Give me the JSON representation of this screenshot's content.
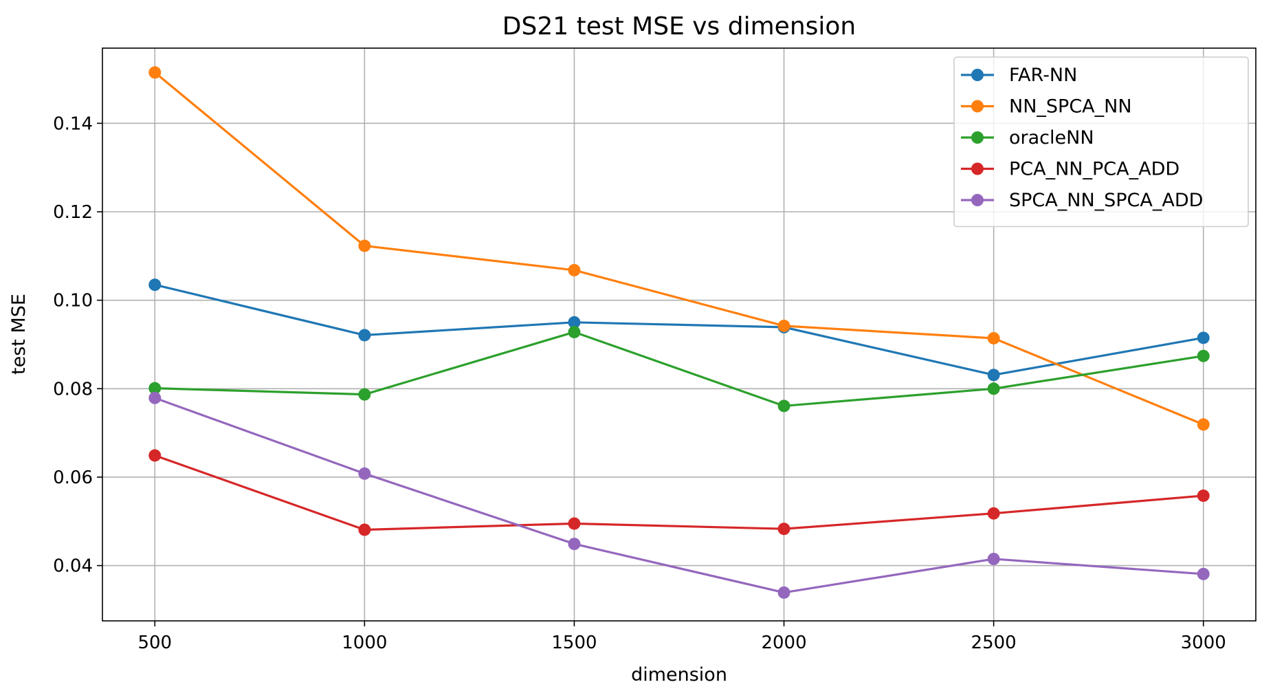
{
  "chart_data": {
    "type": "line",
    "title": "DS21 test MSE vs dimension",
    "xlabel": "dimension",
    "ylabel": "test MSE",
    "x": [
      500,
      1000,
      1500,
      2000,
      2500,
      3000
    ],
    "xlim": [
      375,
      3125
    ],
    "ylim": [
      0.0275,
      0.157
    ],
    "xticks": [
      500,
      1000,
      1500,
      2000,
      2500,
      3000
    ],
    "yticks": [
      0.04,
      0.06,
      0.08,
      0.1,
      0.12,
      0.14
    ],
    "ytick_labels": [
      "0.04",
      "0.06",
      "0.08",
      "0.10",
      "0.12",
      "0.14"
    ],
    "grid": true,
    "legend_position": "top-right",
    "series": [
      {
        "name": "FAR-NN",
        "color": "#1f77b4",
        "values": [
          0.1035,
          0.0921,
          0.095,
          0.0939,
          0.0831,
          0.0915
        ]
      },
      {
        "name": "NN_SPCA_NN",
        "color": "#ff7f0e",
        "values": [
          0.1515,
          0.1123,
          0.1068,
          0.0942,
          0.0914,
          0.0719
        ]
      },
      {
        "name": "oracleNN",
        "color": "#2ca02c",
        "values": [
          0.0801,
          0.0787,
          0.0928,
          0.0761,
          0.08,
          0.0874
        ]
      },
      {
        "name": "PCA_NN_PCA_ADD",
        "color": "#d62728",
        "values": [
          0.0649,
          0.0481,
          0.0495,
          0.0483,
          0.0518,
          0.0558
        ]
      },
      {
        "name": "SPCA_NN_SPCA_ADD",
        "color": "#9467bd",
        "values": [
          0.0779,
          0.0608,
          0.0449,
          0.0339,
          0.0415,
          0.0381
        ]
      }
    ]
  }
}
